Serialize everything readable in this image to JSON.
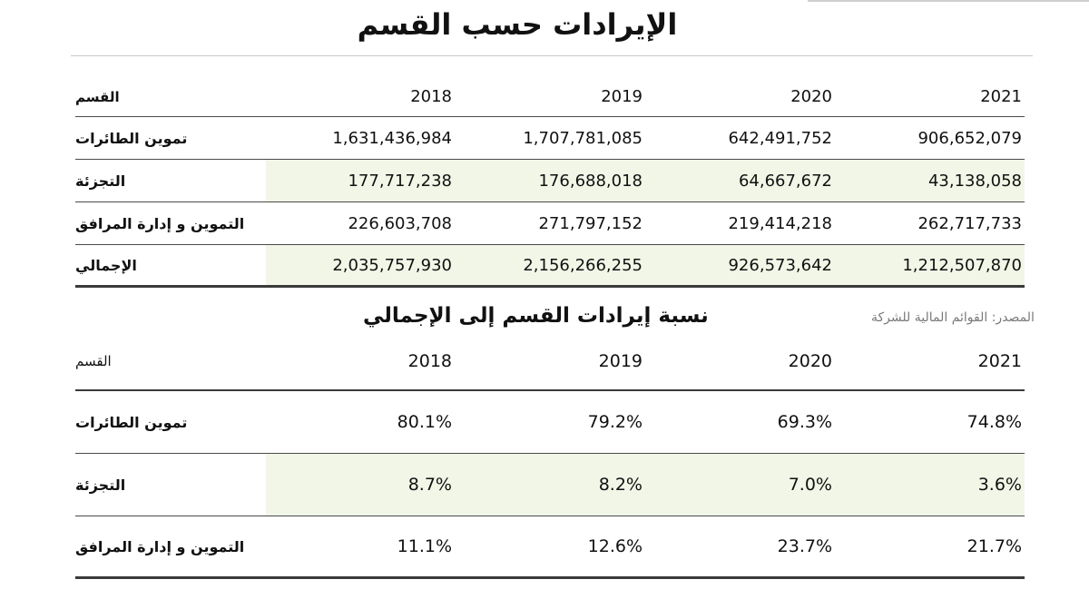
{
  "title": "الإيرادات حسب القسم",
  "revenue_table": {
    "headers": [
      "القسم",
      "2018",
      "2019",
      "2020",
      "2021"
    ],
    "rows": [
      {
        "division": "تموين الطائرات",
        "values": [
          "1,631,436,984",
          "1,707,781,085",
          "642,491,752",
          "906,652,079"
        ]
      },
      {
        "division": "التجزئة",
        "values": [
          "177,717,238",
          "176,688,018",
          "64,667,672",
          "43,138,058"
        ]
      },
      {
        "division": "التموين و إدارة المرافق",
        "values": [
          "226,603,708",
          "271,797,152",
          "219,414,218",
          "262,717,733"
        ]
      },
      {
        "division": "الإجمالي",
        "values": [
          "2,035,757,930",
          "2,156,266,255",
          "926,573,642",
          "1,212,507,870"
        ]
      }
    ]
  },
  "source": "المصدر: القوائم المالية للشركة",
  "share_title": "نسبة إيرادات القسم إلى الإجمالي",
  "share_table": {
    "headers": [
      "القسم",
      "2018",
      "2019",
      "2020",
      "2021"
    ],
    "rows": [
      {
        "division": "تموين الطائرات",
        "values": [
          "80.1%",
          "79.2%",
          "69.3%",
          "74.8%"
        ]
      },
      {
        "division": "التجزئة",
        "values": [
          "8.7%",
          "8.2%",
          "7.0%",
          "3.6%"
        ]
      },
      {
        "division": "التموين و إدارة المرافق",
        "values": [
          "11.1%",
          "12.6%",
          "23.7%",
          "21.7%"
        ]
      }
    ]
  },
  "colors": {
    "highlight": "#f1f6e7",
    "rule": "#3a3a3a",
    "source_text": "#7a7a7a"
  }
}
